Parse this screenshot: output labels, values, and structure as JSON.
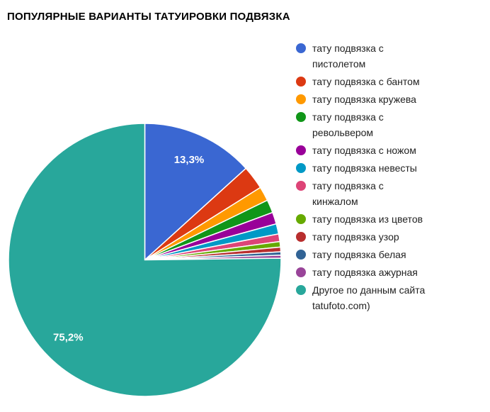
{
  "chart_data": {
    "type": "pie",
    "title": "ПОПУЛЯРНЫЕ ВАРИАНТЫ ТАТУИРОВКИ ПОДВЯЗКА",
    "legend_position": "right",
    "start_angle": "12-oclock",
    "direction": "clockwise",
    "background_color": "#FFFFFF",
    "label_text_color": "#FFFFFF",
    "legend_text_color": "#222222",
    "slices": [
      {
        "label": "тату подвязка с пистолетом",
        "legend_lines": [
          "тату подвязка с",
          "пистолетом"
        ],
        "value": 13.3,
        "color": "#3A67D2",
        "pct_label": "13,3%"
      },
      {
        "label": "тату подвязка с бантом",
        "legend_lines": [
          "тату подвязка с бантом"
        ],
        "value": 2.8,
        "color": "#DC3912",
        "pct_label": ""
      },
      {
        "label": "тату подвязка кружева",
        "legend_lines": [
          "тату подвязка кружева"
        ],
        "value": 1.7,
        "color": "#FF9900",
        "pct_label": ""
      },
      {
        "label": "тату подвязка с револьвером",
        "legend_lines": [
          "тату подвязка с",
          "револьвером"
        ],
        "value": 1.55,
        "color": "#109618",
        "pct_label": ""
      },
      {
        "label": "тату подвязка с ножом",
        "legend_lines": [
          "тату подвязка с ножом"
        ],
        "value": 1.4,
        "color": "#990099",
        "pct_label": ""
      },
      {
        "label": "тату подвязка невесты",
        "legend_lines": [
          "тату подвязка невесты"
        ],
        "value": 1.2,
        "color": "#0099C6",
        "pct_label": ""
      },
      {
        "label": "тату подвязка с кинжалом",
        "legend_lines": [
          "тату подвязка с",
          "кинжалом"
        ],
        "value": 0.9,
        "color": "#DD4477",
        "pct_label": ""
      },
      {
        "label": "тату подвязка из цветов",
        "legend_lines": [
          "тату подвязка из цветов"
        ],
        "value": 0.65,
        "color": "#66AA00",
        "pct_label": ""
      },
      {
        "label": "тату подвязка узор",
        "legend_lines": [
          "тату подвязка узор"
        ],
        "value": 0.55,
        "color": "#B82E2E",
        "pct_label": ""
      },
      {
        "label": "тату подвязка белая",
        "legend_lines": [
          "тату подвязка белая"
        ],
        "value": 0.4,
        "color": "#316395",
        "pct_label": ""
      },
      {
        "label": "тату подвязка ажурная",
        "legend_lines": [
          "тату подвязка ажурная"
        ],
        "value": 0.35,
        "color": "#994499",
        "pct_label": ""
      },
      {
        "label": "Другое по данным сайта tatufoto.com)",
        "legend_lines": [
          "Другое по данным сайта",
          "tatufoto.com)"
        ],
        "value": 75.2,
        "color": "#28A79B",
        "pct_label": "75,2%"
      }
    ]
  }
}
